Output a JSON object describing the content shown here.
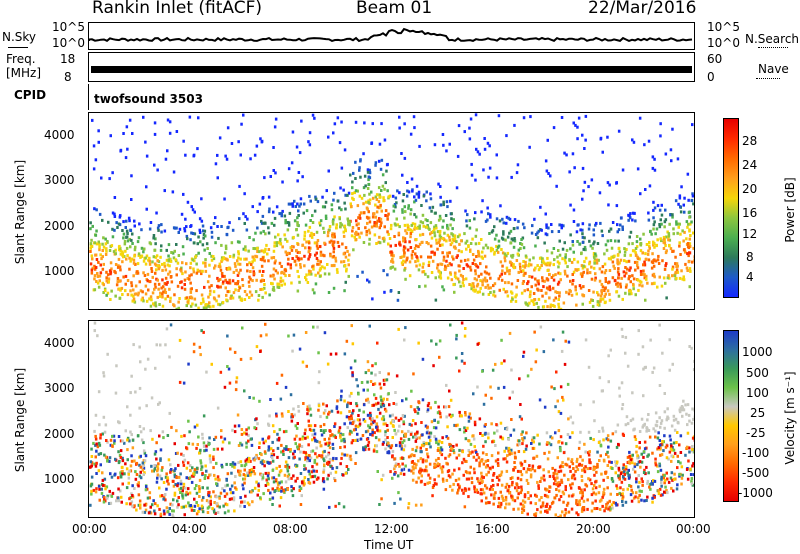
{
  "header": {
    "station": "Rankin Inlet (fitACF)",
    "beam": "Beam 01",
    "date": "22/Mar/2016"
  },
  "top_panels": {
    "nsky_label": "N.Sky",
    "nsearch_label": "N.Search",
    "noise_ticks": [
      "10^5",
      "10^0"
    ],
    "freq_label_1": "Freq.",
    "freq_label_2": "[MHz]",
    "freq_ticks": [
      "18",
      "8"
    ],
    "nave_label": "Nave",
    "nave_ticks": [
      "60",
      "0"
    ],
    "cpid_label": "CPID",
    "cpid_value": "twofsound 3503"
  },
  "colors": {
    "power_scale": [
      "#1428ff",
      "#1e5ac8",
      "#2d7a5a",
      "#4caf50",
      "#8dc63f",
      "#f5d60a",
      "#ff9f1c",
      "#ff6a00",
      "#ff2a00",
      "#e60000"
    ],
    "velocity_scale": [
      "#1e3cc8",
      "#2d6fa0",
      "#3a9a5a",
      "#6cc24a",
      "#c8c8c0",
      "#ffc800",
      "#ff9f1c",
      "#ff6a00",
      "#ff2a00",
      "#e60000"
    ]
  },
  "chart_data": [
    {
      "type": "heatmap",
      "name": "power",
      "ylabel": "Slant Range [km]",
      "yticks": [
        "1000",
        "2000",
        "3000",
        "4000"
      ],
      "ylim": [
        200,
        4500
      ],
      "xlim": [
        "00:00",
        "24:00"
      ],
      "colorbar_label": "Power [dB]",
      "colorbar_ticks": [
        "4",
        "8",
        "12",
        "16",
        "20",
        "24",
        "28"
      ]
    },
    {
      "type": "heatmap",
      "name": "velocity",
      "ylabel": "Slant Range [km]",
      "yticks": [
        "1000",
        "2000",
        "3000",
        "4000"
      ],
      "ylim": [
        200,
        4500
      ],
      "xlim": [
        "00:00",
        "24:00"
      ],
      "xticks": [
        "00:00",
        "04:00",
        "08:00",
        "12:00",
        "16:00",
        "20:00",
        "00:00"
      ],
      "xlabel": "Time UT",
      "colorbar_label": "Velocity [m s⁻¹]",
      "colorbar_ticks": [
        "1000",
        "500",
        "100",
        "25",
        "-25",
        "-100",
        "-500",
        "-1000"
      ]
    }
  ]
}
